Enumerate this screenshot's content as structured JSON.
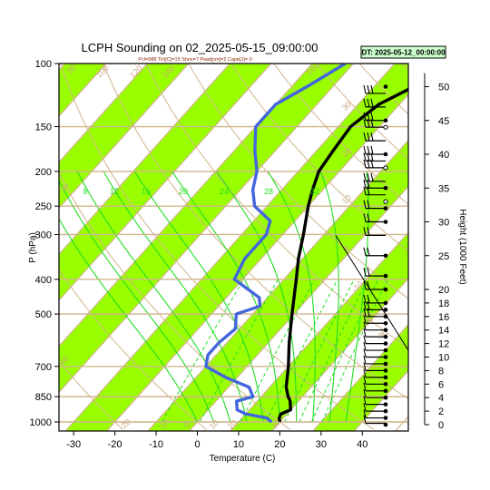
{
  "chart_data": {
    "type": "line",
    "title": "LCPH Sounding on 02_2025-05-15_09:00:00",
    "subtitle": "Pcl=988 Tlcl[C]=15 Shox=7 Pwat[cm]=2 Cape[J]= 0",
    "datetime_label": "DT: 2025-05-12_00:00:00",
    "xlabel": "Temperature (C)",
    "ylabel": "P (hPa)",
    "y2label": "Height (1000 Feet)",
    "x_ticks": [
      -30,
      -20,
      -10,
      0,
      10,
      20,
      30,
      40
    ],
    "y_ticks": [
      100,
      150,
      200,
      250,
      300,
      400,
      500,
      700,
      850,
      1000
    ],
    "y2_ticks": [
      0,
      2,
      4,
      6,
      8,
      10,
      12,
      14,
      16,
      18,
      20,
      25,
      30,
      35,
      40,
      45,
      50
    ],
    "xlim": [
      -33,
      42
    ],
    "ylim": [
      1050,
      100
    ],
    "y_scale": "log",
    "isotherm_labels": [
      -30,
      -20,
      -10,
      0,
      10,
      20,
      30,
      40
    ],
    "mixing_ratio_labels": [
      "8",
      "12",
      "16",
      "20",
      "24",
      "28",
      "32"
    ],
    "dry_adiabat_labels": [
      "80",
      "100",
      "120",
      "140",
      "160",
      "30",
      "20",
      "10",
      "0",
      "-10",
      "-20",
      "-30"
    ],
    "series": [
      {
        "name": "Temperature",
        "color": "#000000",
        "points": [
          [
            1000,
            20
          ],
          [
            975,
            19
          ],
          [
            950,
            18.5
          ],
          [
            925,
            20
          ],
          [
            900,
            19
          ],
          [
            875,
            18
          ],
          [
            850,
            16.5
          ],
          [
            800,
            14
          ],
          [
            700,
            10
          ],
          [
            600,
            5
          ],
          [
            500,
            -0.5
          ],
          [
            400,
            -7
          ],
          [
            350,
            -11
          ],
          [
            300,
            -15
          ],
          [
            250,
            -20
          ],
          [
            225,
            -22.5
          ],
          [
            200,
            -25
          ],
          [
            175,
            -26
          ],
          [
            150,
            -27
          ],
          [
            130,
            -25
          ],
          [
            115,
            -20
          ],
          [
            100,
            -15
          ]
        ]
      },
      {
        "name": "Dewpoint",
        "color": "#4466dd",
        "points": [
          [
            1000,
            18
          ],
          [
            975,
            16
          ],
          [
            950,
            10
          ],
          [
            925,
            7
          ],
          [
            900,
            6
          ],
          [
            875,
            5
          ],
          [
            850,
            8
          ],
          [
            800,
            5
          ],
          [
            750,
            -3
          ],
          [
            700,
            -10
          ],
          [
            650,
            -12
          ],
          [
            600,
            -12
          ],
          [
            550,
            -11
          ],
          [
            500,
            -14
          ],
          [
            475,
            -10
          ],
          [
            450,
            -12
          ],
          [
            400,
            -22
          ],
          [
            350,
            -24
          ],
          [
            300,
            -24
          ],
          [
            275,
            -26
          ],
          [
            250,
            -33
          ],
          [
            225,
            -37
          ],
          [
            200,
            -40
          ],
          [
            175,
            -45
          ],
          [
            150,
            -50
          ],
          [
            130,
            -50
          ],
          [
            115,
            -46
          ],
          [
            100,
            -42
          ]
        ]
      }
    ],
    "wind_barbs": {
      "color": "#000000",
      "levels_kft": [
        0.2,
        1,
        2,
        3,
        4,
        5,
        6,
        7,
        8,
        9,
        10,
        11,
        12,
        13,
        14,
        15,
        16,
        17,
        18,
        20,
        22,
        25,
        28,
        30,
        32,
        34,
        35,
        36,
        38,
        39,
        40,
        42,
        44,
        45,
        47,
        49
      ],
      "filled_dot_kft": [
        0,
        1,
        2,
        3,
        4,
        5,
        6,
        7,
        8,
        9,
        10,
        11,
        12,
        13,
        14,
        15,
        16,
        17,
        18,
        20,
        22,
        25,
        30,
        32,
        35,
        40,
        45,
        50
      ],
      "open_dot_kft": [
        33,
        38,
        44
      ]
    },
    "colors": {
      "green_band": "#99ff00",
      "skew_line": "#d2b48c",
      "mixing_ratio": "#22dd22",
      "moist_adiabat": "#22dd22",
      "badge_bg": "#ccffcc"
    },
    "grid": true
  }
}
